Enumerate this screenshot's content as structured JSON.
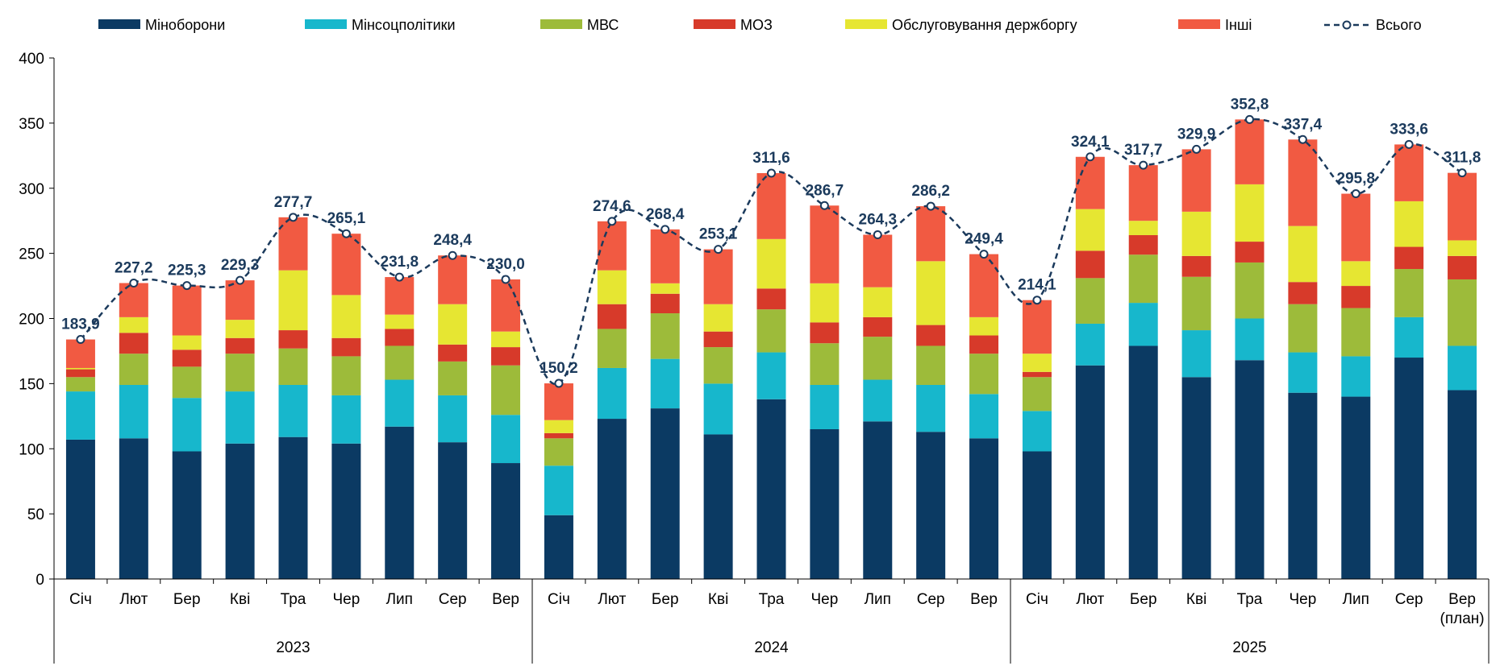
{
  "chart_data": {
    "type": "bar",
    "stacked": true,
    "ylim": [
      0,
      400
    ],
    "yticks": [
      0,
      50,
      100,
      150,
      200,
      250,
      300,
      350,
      400
    ],
    "series": [
      {
        "name": "Міноборони",
        "color": "#0b3a63",
        "values": [
          107,
          108,
          98,
          104,
          109,
          104,
          117,
          105,
          89,
          49,
          123,
          131,
          111,
          138,
          115,
          121,
          113,
          108,
          98,
          164,
          179,
          155,
          168,
          143,
          140,
          170,
          145
        ]
      },
      {
        "name": "Мінсоцполітики",
        "color": "#17b7cc",
        "values": [
          37,
          41,
          41,
          40,
          40,
          37,
          36,
          36,
          37,
          38,
          39,
          38,
          39,
          36,
          34,
          32,
          36,
          34,
          31,
          32,
          33,
          36,
          32,
          31,
          31,
          31,
          34
        ]
      },
      {
        "name": "МВС",
        "color": "#9dbb3a",
        "values": [
          11,
          24,
          24,
          29,
          28,
          30,
          26,
          26,
          38,
          21,
          30,
          35,
          28,
          33,
          32,
          33,
          30,
          31,
          26,
          35,
          37,
          41,
          43,
          37,
          37,
          37,
          51
        ]
      },
      {
        "name": "МОЗ",
        "color": "#d73a2a",
        "values": [
          6,
          16,
          13,
          12,
          14,
          14,
          13,
          13,
          14,
          4,
          19,
          15,
          12,
          16,
          16,
          15,
          16,
          14,
          4,
          21,
          15,
          16,
          16,
          17,
          17,
          17,
          18
        ]
      },
      {
        "name": "Обслуговування держборгу",
        "color": "#e6e632",
        "values": [
          1,
          12,
          11,
          14,
          46,
          33,
          11,
          31,
          12,
          10,
          26,
          8,
          21,
          38,
          30,
          23,
          49,
          14,
          14,
          32,
          11,
          34,
          44,
          43,
          19,
          35,
          12
        ]
      },
      {
        "name": "Інші",
        "color": "#f15a42",
        "values": [
          21.9,
          26.2,
          38.3,
          30.3,
          40.7,
          47.1,
          28.8,
          37.4,
          40,
          28.2,
          37.6,
          41.4,
          42.1,
          50.6,
          59.7,
          40.3,
          42.2,
          48.4,
          41.1,
          40.1,
          42.7,
          47.9,
          49.8,
          66.4,
          51.8,
          43.6,
          51.8
        ]
      }
    ],
    "total": {
      "name": "Всього",
      "color": "#1b3a5c",
      "values": [
        183.9,
        227.2,
        225.3,
        229.3,
        277.7,
        265.1,
        231.8,
        248.4,
        230.0,
        150.2,
        274.6,
        268.4,
        253.1,
        311.6,
        286.7,
        264.3,
        286.2,
        249.4,
        214.1,
        324.1,
        317.7,
        329.9,
        352.8,
        337.4,
        295.8,
        333.6,
        311.8
      ],
      "labels": [
        "183,9",
        "227,2",
        "225,3",
        "229,3",
        "277,7",
        "265,1",
        "231,8",
        "248,4",
        "230,0",
        "150,2",
        "274,6",
        "268,4",
        "253,1",
        "311,6",
        "286,7",
        "264,3",
        "286,2",
        "249,4",
        "214,1",
        "324,1",
        "317,7",
        "329,9",
        "352,8",
        "337,4",
        "295,8",
        "333,6",
        "311,8"
      ]
    },
    "categories": [
      [
        "Січ"
      ],
      [
        "Лют"
      ],
      [
        "Бер"
      ],
      [
        "Кві"
      ],
      [
        "Тра"
      ],
      [
        "Чер"
      ],
      [
        "Лип"
      ],
      [
        "Сер"
      ],
      [
        "Вер"
      ],
      [
        "Січ"
      ],
      [
        "Лют"
      ],
      [
        "Бер"
      ],
      [
        "Кві"
      ],
      [
        "Тра"
      ],
      [
        "Чер"
      ],
      [
        "Лип"
      ],
      [
        "Сер"
      ],
      [
        "Вер"
      ],
      [
        "Січ"
      ],
      [
        "Лют"
      ],
      [
        "Бер"
      ],
      [
        "Кві"
      ],
      [
        "Тра"
      ],
      [
        "Чер"
      ],
      [
        "Лип"
      ],
      [
        "Сер"
      ],
      [
        "Вер",
        "(план)"
      ]
    ],
    "groups": [
      {
        "label": "2023",
        "count": 9
      },
      {
        "label": "2024",
        "count": 9
      },
      {
        "label": "2025",
        "count": 9
      }
    ]
  }
}
